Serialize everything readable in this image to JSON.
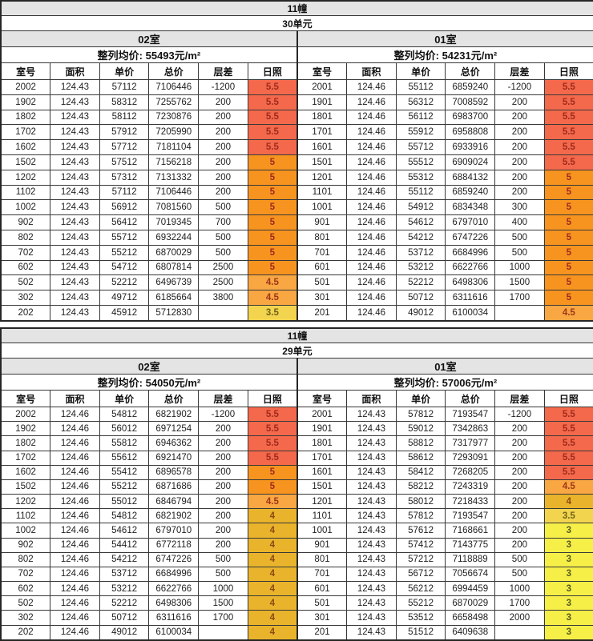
{
  "page": {
    "background": "#ffffff",
    "grid_border": "#383838",
    "header_gray": "#e4e4e4"
  },
  "sun_styles": {
    "5.5": {
      "bg": "#f4694b",
      "text": "#9e2a1e"
    },
    "5": {
      "bg": "#f79420",
      "text": "#9e2a1e"
    },
    "4.5": {
      "bg": "#f8a743",
      "text": "#a03618"
    },
    "4": {
      "bg": "#e9b42c",
      "text": "#8a4a12"
    },
    "3.5": {
      "bg": "#f3d44f",
      "text": "#6f6418"
    },
    "3": {
      "bg": "#f6ef48",
      "text": "#565a22"
    }
  },
  "tables": [
    {
      "building": "11幢",
      "unit": "30单元",
      "columns": [
        "室号",
        "面积",
        "单价",
        "总价",
        "层差",
        "日照"
      ],
      "sections": [
        {
          "room": "02室",
          "avg": "整列均价: 55493元/m²",
          "rows": [
            [
              "2002",
              "124.43",
              "57112",
              "7106446",
              "-1200",
              "5.5"
            ],
            [
              "1902",
              "124.43",
              "58312",
              "7255762",
              "200",
              "5.5"
            ],
            [
              "1802",
              "124.43",
              "58112",
              "7230876",
              "200",
              "5.5"
            ],
            [
              "1702",
              "124.43",
              "57912",
              "7205990",
              "200",
              "5.5"
            ],
            [
              "1602",
              "124.43",
              "57712",
              "7181104",
              "200",
              "5.5"
            ],
            [
              "1502",
              "124.43",
              "57512",
              "7156218",
              "200",
              "5"
            ],
            [
              "1202",
              "124.43",
              "57312",
              "7131332",
              "200",
              "5"
            ],
            [
              "1102",
              "124.43",
              "57112",
              "7106446",
              "200",
              "5"
            ],
            [
              "1002",
              "124.43",
              "56912",
              "7081560",
              "500",
              "5"
            ],
            [
              "902",
              "124.43",
              "56412",
              "7019345",
              "700",
              "5"
            ],
            [
              "802",
              "124.43",
              "55712",
              "6932244",
              "500",
              "5"
            ],
            [
              "702",
              "124.43",
              "55212",
              "6870029",
              "500",
              "5"
            ],
            [
              "602",
              "124.43",
              "54712",
              "6807814",
              "2500",
              "5"
            ],
            [
              "502",
              "124.43",
              "52212",
              "6496739",
              "2500",
              "4.5"
            ],
            [
              "302",
              "124.43",
              "49712",
              "6185664",
              "3800",
              "4.5"
            ],
            [
              "202",
              "124.43",
              "45912",
              "5712830",
              "",
              "3.5"
            ]
          ]
        },
        {
          "room": "01室",
          "avg": "整列均价: 54231元/m²",
          "rows": [
            [
              "2001",
              "124.46",
              "55112",
              "6859240",
              "-1200",
              "5.5"
            ],
            [
              "1901",
              "124.46",
              "56312",
              "7008592",
              "200",
              "5.5"
            ],
            [
              "1801",
              "124.46",
              "56112",
              "6983700",
              "200",
              "5.5"
            ],
            [
              "1701",
              "124.46",
              "55912",
              "6958808",
              "200",
              "5.5"
            ],
            [
              "1601",
              "124.46",
              "55712",
              "6933916",
              "200",
              "5.5"
            ],
            [
              "1501",
              "124.46",
              "55512",
              "6909024",
              "200",
              "5.5"
            ],
            [
              "1201",
              "124.46",
              "55312",
              "6884132",
              "200",
              "5"
            ],
            [
              "1101",
              "124.46",
              "55112",
              "6859240",
              "200",
              "5"
            ],
            [
              "1001",
              "124.46",
              "54912",
              "6834348",
              "300",
              "5"
            ],
            [
              "901",
              "124.46",
              "54612",
              "6797010",
              "400",
              "5"
            ],
            [
              "801",
              "124.46",
              "54212",
              "6747226",
              "500",
              "5"
            ],
            [
              "701",
              "124.46",
              "53712",
              "6684996",
              "500",
              "5"
            ],
            [
              "601",
              "124.46",
              "53212",
              "6622766",
              "1000",
              "5"
            ],
            [
              "501",
              "124.46",
              "52212",
              "6498306",
              "1500",
              "5"
            ],
            [
              "301",
              "124.46",
              "50712",
              "6311616",
              "1700",
              "5"
            ],
            [
              "201",
              "124.46",
              "49012",
              "6100034",
              "",
              "4.5"
            ]
          ]
        }
      ]
    },
    {
      "building": "11幢",
      "unit": "29单元",
      "columns": [
        "室号",
        "面积",
        "单价",
        "总价",
        "层差",
        "日照"
      ],
      "sections": [
        {
          "room": "02室",
          "avg": "整列均价: 54050元/m²",
          "rows": [
            [
              "2002",
              "124.46",
              "54812",
              "6821902",
              "-1200",
              "5.5"
            ],
            [
              "1902",
              "124.46",
              "56012",
              "6971254",
              "200",
              "5.5"
            ],
            [
              "1802",
              "124.46",
              "55812",
              "6946362",
              "200",
              "5.5"
            ],
            [
              "1702",
              "124.46",
              "55612",
              "6921470",
              "200",
              "5.5"
            ],
            [
              "1602",
              "124.46",
              "55412",
              "6896578",
              "200",
              "5"
            ],
            [
              "1502",
              "124.46",
              "55212",
              "6871686",
              "200",
              "5"
            ],
            [
              "1202",
              "124.46",
              "55012",
              "6846794",
              "200",
              "4.5"
            ],
            [
              "1102",
              "124.46",
              "54812",
              "6821902",
              "200",
              "4"
            ],
            [
              "1002",
              "124.46",
              "54612",
              "6797010",
              "200",
              "4"
            ],
            [
              "902",
              "124.46",
              "54412",
              "6772118",
              "200",
              "4"
            ],
            [
              "802",
              "124.46",
              "54212",
              "6747226",
              "500",
              "4"
            ],
            [
              "702",
              "124.46",
              "53712",
              "6684996",
              "500",
              "4"
            ],
            [
              "602",
              "124.46",
              "53212",
              "6622766",
              "1000",
              "4"
            ],
            [
              "502",
              "124.46",
              "52212",
              "6498306",
              "1500",
              "4"
            ],
            [
              "302",
              "124.46",
              "50712",
              "6311616",
              "1700",
              "4"
            ],
            [
              "202",
              "124.46",
              "49012",
              "6100034",
              "",
              "4"
            ]
          ]
        },
        {
          "room": "01室",
          "avg": "整列均价: 57006元/m²",
          "rows": [
            [
              "2001",
              "124.43",
              "57812",
              "7193547",
              "-1200",
              "5.5"
            ],
            [
              "1901",
              "124.43",
              "59012",
              "7342863",
              "200",
              "5.5"
            ],
            [
              "1801",
              "124.43",
              "58812",
              "7317977",
              "200",
              "5.5"
            ],
            [
              "1701",
              "124.43",
              "58612",
              "7293091",
              "200",
              "5.5"
            ],
            [
              "1601",
              "124.43",
              "58412",
              "7268205",
              "200",
              "5.5"
            ],
            [
              "1501",
              "124.43",
              "58212",
              "7243319",
              "200",
              "4.5"
            ],
            [
              "1201",
              "124.43",
              "58012",
              "7218433",
              "200",
              "4"
            ],
            [
              "1101",
              "124.43",
              "57812",
              "7193547",
              "200",
              "3.5"
            ],
            [
              "1001",
              "124.43",
              "57612",
              "7168661",
              "200",
              "3"
            ],
            [
              "901",
              "124.43",
              "57412",
              "7143775",
              "200",
              "3"
            ],
            [
              "801",
              "124.43",
              "57212",
              "7118889",
              "500",
              "3"
            ],
            [
              "701",
              "124.43",
              "56712",
              "7056674",
              "500",
              "3"
            ],
            [
              "601",
              "124.43",
              "56212",
              "6994459",
              "1000",
              "3"
            ],
            [
              "501",
              "124.43",
              "55212",
              "6870029",
              "1700",
              "3"
            ],
            [
              "301",
              "124.43",
              "53512",
              "6658498",
              "2000",
              "3"
            ],
            [
              "201",
              "124.43",
              "51512",
              "6409638",
              "",
              "3"
            ]
          ]
        }
      ]
    }
  ]
}
